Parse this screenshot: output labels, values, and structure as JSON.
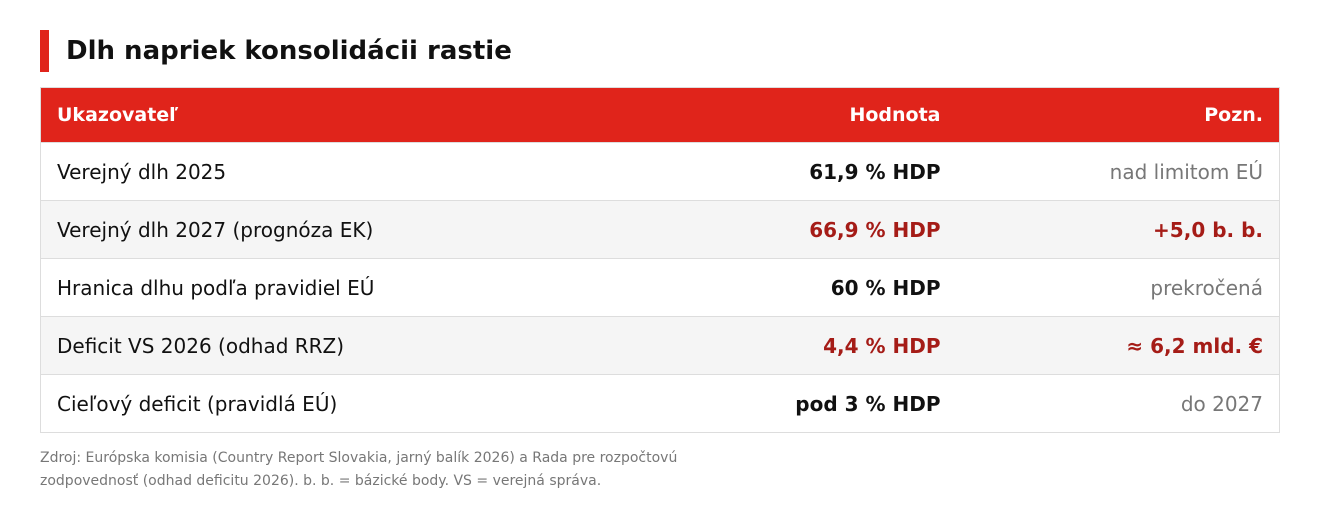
{
  "title": "Dlh napriek konsolidácii rastie",
  "table": {
    "header": [
      "Ukazovateľ",
      "Hodnota",
      "Pozn."
    ],
    "rows": [
      [
        "Verejný dlh 2025",
        "61,9 % HDP",
        "nad limitom EÚ"
      ],
      [
        "Verejný dlh 2027 (prognóza EK)",
        "66,9 % HDP",
        "+5,0 b. b."
      ],
      [
        "Hranica dlhu podľa pravidiel EÚ",
        "60 % HDP",
        "prekročená"
      ],
      [
        "Deficit VS 2026 (odhad RRZ)",
        "4,4 % HDP",
        "≈ 6,2 mld. €"
      ],
      [
        "Cieľový deficit (pravidlá EÚ)",
        "pod 3 % HDP",
        "do 2027"
      ]
    ]
  },
  "source": [
    "Zdroj: Európska komisia (Country Report Slovakia, jarný balík 2026) a Rada pre rozpočtovú",
    "zodpovednosť (odhad deficitu 2026). b. b. = bázické body. VS = verejná správa."
  ]
}
